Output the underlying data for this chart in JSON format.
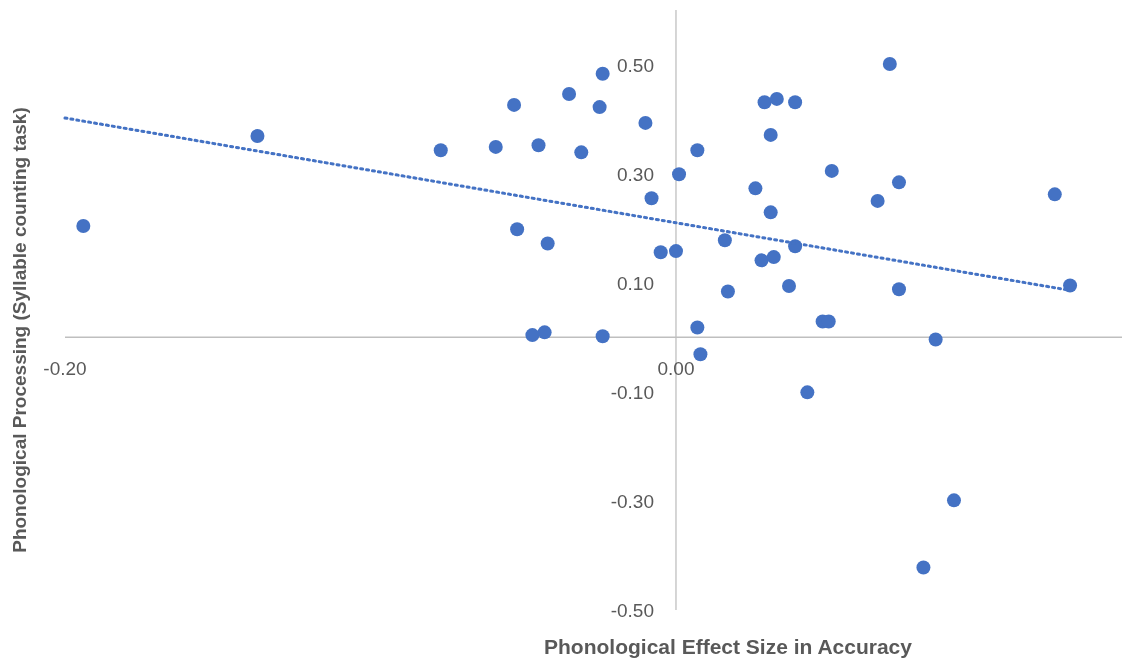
{
  "chart_data": {
    "type": "scatter",
    "xlabel": "Phonological Effect Size in Accuracy",
    "ylabel": "Phonological Processing (Syllable counting task)",
    "xlim": [
      -0.2,
      0.146
    ],
    "ylim": [
      -0.5,
      0.6
    ],
    "xticks": [
      {
        "value": -0.2,
        "label": "-0.20"
      },
      {
        "value": 0,
        "label": "0.00"
      }
    ],
    "yticks": [
      {
        "value": -0.5,
        "label": "-0.50"
      },
      {
        "value": -0.3,
        "label": "-0.30"
      },
      {
        "value": -0.1,
        "label": "-0.10"
      },
      {
        "value": 0.1,
        "label": "0.10"
      },
      {
        "value": 0.3,
        "label": "0.30"
      },
      {
        "value": 0.5,
        "label": "0.50"
      }
    ],
    "grid": false,
    "series": [
      {
        "color": "#4472c4",
        "marker": "circle",
        "x": [
          -0.194,
          -0.137,
          -0.077,
          -0.059,
          -0.053,
          -0.052,
          -0.045,
          -0.047,
          -0.043,
          -0.042,
          -0.035,
          -0.031,
          -0.025,
          -0.024,
          -0.024,
          -0.01,
          -0.008,
          -0.005,
          0.001,
          0.0,
          0.007,
          0.007,
          0.008,
          0.016,
          0.017,
          0.026,
          0.028,
          0.029,
          0.032,
          0.031,
          0.031,
          0.033,
          0.037,
          0.039,
          0.039,
          0.043,
          0.048,
          0.05,
          0.051,
          0.066,
          0.07,
          0.073,
          0.073,
          0.081,
          0.085,
          0.091,
          0.124,
          0.129
        ],
        "values": [
          0.204,
          0.369,
          0.343,
          0.349,
          0.426,
          0.198,
          0.352,
          0.004,
          0.009,
          0.172,
          0.446,
          0.339,
          0.422,
          0.483,
          0.002,
          0.393,
          0.255,
          0.156,
          0.299,
          0.158,
          0.343,
          0.018,
          -0.031,
          0.178,
          0.084,
          0.273,
          0.141,
          0.431,
          0.147,
          0.229,
          0.371,
          0.437,
          0.094,
          0.167,
          0.431,
          -0.101,
          0.029,
          0.029,
          0.305,
          0.25,
          0.501,
          0.088,
          0.284,
          -0.422,
          -0.004,
          -0.299,
          0.262,
          0.095
        ]
      },
      {
        "type": "line",
        "color": "#4472c4",
        "line_style": "dotted",
        "marker": "none",
        "x": [
          -0.2,
          0.129
        ],
        "values": [
          0.402,
          0.086
        ]
      }
    ]
  }
}
